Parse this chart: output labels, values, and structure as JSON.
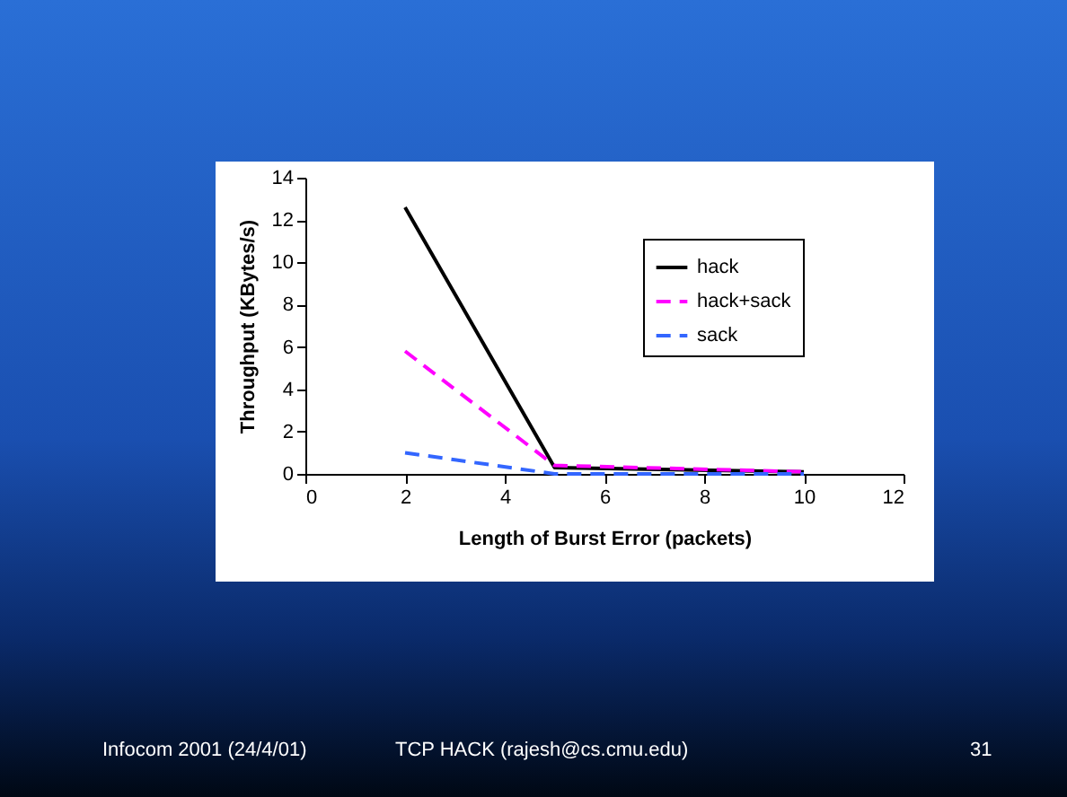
{
  "chart_data": {
    "type": "line",
    "xlabel": "Length of Burst Error (packets)",
    "ylabel": "Throughput (KBytes/s)",
    "x": [
      2,
      5,
      10
    ],
    "series": [
      {
        "name": "hack",
        "color": "#000000",
        "line_style": "solid",
        "values": [
          12.6,
          0.3,
          0.1
        ]
      },
      {
        "name": "hack+sack",
        "color": "#ff00ff",
        "line_style": "dashed",
        "values": [
          5.8,
          0.4,
          0.1
        ]
      },
      {
        "name": "sack",
        "color": "#3366ff",
        "line_style": "dashed",
        "values": [
          1.0,
          0.0,
          0.0
        ]
      }
    ],
    "xlim": [
      0,
      12
    ],
    "xticks": [
      0,
      2,
      4,
      6,
      8,
      10,
      12
    ],
    "ylim": [
      0,
      14
    ],
    "yticks": [
      0,
      2,
      4,
      6,
      8,
      10,
      12,
      14
    ],
    "legend": "top right",
    "annotations": [
      "Infocom 2001 (24/4/01)",
      "TCP HACK (rajesh@cs.cmu.edu)",
      "31"
    ]
  }
}
